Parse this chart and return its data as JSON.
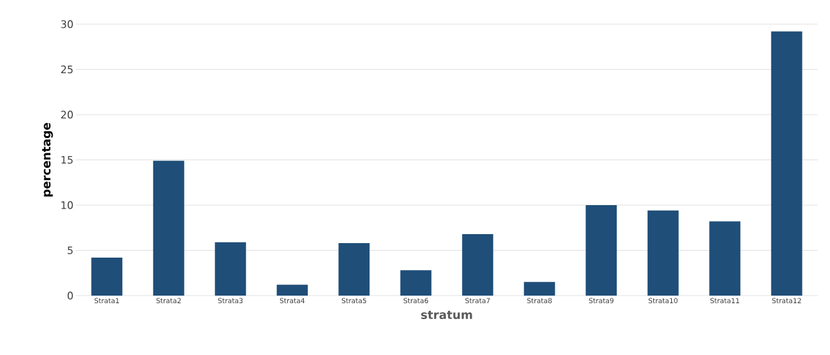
{
  "chart_data": {
    "type": "bar",
    "xlabel": "stratum",
    "ylabel": "percentage",
    "categories": [
      "Strata1",
      "Strata2",
      "Strata3",
      "Strata4",
      "Strata5",
      "Strata6",
      "Strata7",
      "Strata8",
      "Strata9",
      "Strata10",
      "Strata11",
      "Strata12"
    ],
    "values": [
      4.2,
      14.9,
      5.9,
      1.2,
      5.8,
      2.8,
      6.8,
      1.5,
      10.0,
      9.4,
      8.2,
      29.2
    ],
    "color": "#1f4e79",
    "ylim": [
      0,
      30
    ],
    "yticks": [
      0,
      5,
      10,
      15,
      20,
      25,
      30
    ],
    "grid": "y"
  }
}
